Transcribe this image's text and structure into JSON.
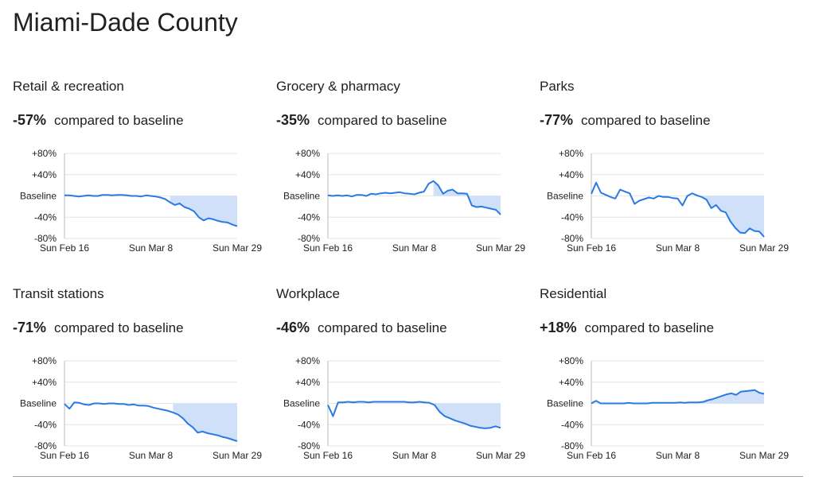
{
  "page": {
    "title": "Miami-Dade County"
  },
  "colors": {
    "line": "#2a7ae2",
    "fill": "#cfe0f8",
    "grid": "#e6e6e6",
    "axis": "#bdbdbd"
  },
  "panels": [
    {
      "category": "Retail & recreation",
      "pct": "-57%",
      "compared": "compared to baseline"
    },
    {
      "category": "Grocery & pharmacy",
      "pct": "-35%",
      "compared": "compared to baseline"
    },
    {
      "category": "Parks",
      "pct": "-77%",
      "compared": "compared to baseline"
    },
    {
      "category": "Transit stations",
      "pct": "-71%",
      "compared": "compared to baseline"
    },
    {
      "category": "Workplace",
      "pct": "-46%",
      "compared": "compared to baseline"
    },
    {
      "category": "Residential",
      "pct": "+18%",
      "compared": "compared to baseline"
    }
  ],
  "chart_data": [
    {
      "type": "area",
      "title": "Retail & recreation",
      "y_ticks": [
        "+80%",
        "+40%",
        "Baseline",
        "-40%",
        "-80%"
      ],
      "x_ticks": [
        "Sun Feb 16",
        "Sun Mar 8",
        "Sun Mar 29"
      ],
      "ylim": [
        -80,
        80
      ],
      "x_range": [
        0,
        42
      ],
      "values": [
        1,
        1,
        0,
        -1,
        0,
        1,
        0,
        0,
        2,
        2,
        1,
        2,
        2,
        1,
        0,
        0,
        -1,
        1,
        0,
        -1,
        -3,
        -6,
        -12,
        -17,
        -14,
        -21,
        -24,
        -29,
        -40,
        -46,
        -42,
        -44,
        -47,
        -49,
        -50,
        -54,
        -57
      ]
    },
    {
      "type": "area",
      "title": "Grocery & pharmacy",
      "y_ticks": [
        "+80%",
        "+40%",
        "Baseline",
        "-40%",
        "-80%"
      ],
      "x_ticks": [
        "Sun Feb 16",
        "Sun Mar 8",
        "Sun Mar 29"
      ],
      "ylim": [
        -80,
        80
      ],
      "x_range": [
        0,
        42
      ],
      "values": [
        1,
        0,
        1,
        0,
        1,
        -1,
        2,
        2,
        0,
        4,
        3,
        5,
        6,
        5,
        6,
        7,
        5,
        4,
        3,
        6,
        8,
        23,
        28,
        20,
        4,
        10,
        12,
        5,
        5,
        4,
        -18,
        -21,
        -20,
        -22,
        -24,
        -26,
        -35
      ]
    },
    {
      "type": "area",
      "title": "Parks",
      "y_ticks": [
        "+80%",
        "+40%",
        "Baseline",
        "-40%",
        "-80%"
      ],
      "x_ticks": [
        "Sun Feb 16",
        "Sun Mar 8",
        "Sun Mar 29"
      ],
      "ylim": [
        -80,
        80
      ],
      "x_range": [
        0,
        42
      ],
      "values": [
        4,
        25,
        6,
        2,
        -2,
        -5,
        12,
        8,
        5,
        -15,
        -9,
        -6,
        -3,
        -5,
        0,
        -2,
        -2,
        -4,
        -5,
        -18,
        0,
        5,
        1,
        -2,
        -7,
        -23,
        -17,
        -28,
        -31,
        -48,
        -60,
        -69,
        -70,
        -61,
        -66,
        -67,
        -77
      ]
    },
    {
      "type": "area",
      "title": "Transit stations",
      "y_ticks": [
        "+80%",
        "+40%",
        "Baseline",
        "-40%",
        "-80%"
      ],
      "x_ticks": [
        "Sun Feb 16",
        "Sun Mar 8",
        "Sun Mar 29"
      ],
      "ylim": [
        -80,
        80
      ],
      "x_range": [
        0,
        42
      ],
      "values": [
        -1,
        -10,
        2,
        1,
        -2,
        -3,
        0,
        0,
        -1,
        0,
        0,
        -1,
        -1,
        -3,
        -2,
        -4,
        -4,
        -5,
        -8,
        -10,
        -12,
        -14,
        -17,
        -21,
        -28,
        -38,
        -45,
        -55,
        -53,
        -56,
        -58,
        -60,
        -63,
        -65,
        -68,
        -71
      ]
    },
    {
      "type": "area",
      "title": "Workplace",
      "y_ticks": [
        "+80%",
        "+40%",
        "Baseline",
        "-40%",
        "-80%"
      ],
      "x_ticks": [
        "Sun Feb 16",
        "Sun Mar 8",
        "Sun Mar 29"
      ],
      "ylim": [
        -80,
        80
      ],
      "x_range": [
        0,
        42
      ],
      "values": [
        -3,
        -24,
        2,
        2,
        3,
        2,
        3,
        3,
        2,
        3,
        3,
        3,
        3,
        3,
        3,
        3,
        2,
        2,
        3,
        2,
        1,
        -3,
        -16,
        -24,
        -28,
        -32,
        -35,
        -38,
        -42,
        -44,
        -46,
        -47,
        -46,
        -43,
        -46
      ]
    },
    {
      "type": "area",
      "title": "Residential",
      "y_ticks": [
        "+80%",
        "+40%",
        "Baseline",
        "-40%",
        "-80%"
      ],
      "x_ticks": [
        "Sun Feb 16",
        "Sun Mar 8",
        "Sun Mar 29"
      ],
      "ylim": [
        -80,
        80
      ],
      "x_range": [
        0,
        42
      ],
      "values": [
        0,
        5,
        0,
        0,
        0,
        0,
        0,
        0,
        1,
        0,
        0,
        0,
        0,
        1,
        1,
        1,
        1,
        1,
        1,
        2,
        1,
        2,
        2,
        2,
        3,
        6,
        8,
        11,
        14,
        17,
        19,
        16,
        22,
        23,
        24,
        25,
        20,
        18
      ]
    }
  ]
}
